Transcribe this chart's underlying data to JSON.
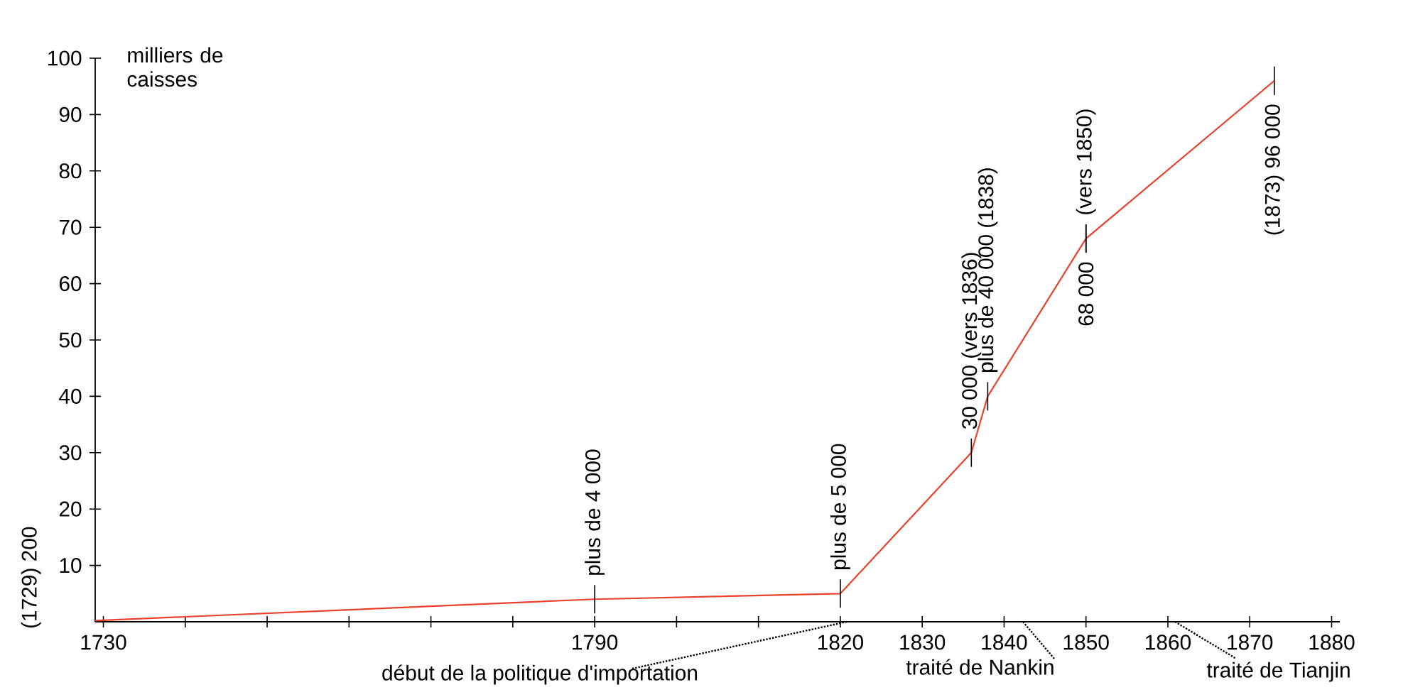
{
  "chart_data": {
    "type": "line",
    "ylabel": "milliers de caisses",
    "x": [
      1729,
      1790,
      1820,
      1836,
      1838,
      1850,
      1873
    ],
    "values": [
      0.2,
      4,
      5,
      30,
      40,
      68,
      96
    ],
    "color": "#e8412c",
    "xlim": [
      1729,
      1881
    ],
    "xticks": [
      1730,
      {
        "value": 1740,
        "label": null
      },
      {
        "value": 1750,
        "label": null
      },
      {
        "value": 1760,
        "label": null
      },
      {
        "value": 1770,
        "label": null
      },
      {
        "value": 1780,
        "label": null
      },
      1790,
      {
        "value": 1800,
        "label": null
      },
      {
        "value": 1810,
        "label": null
      },
      1820,
      1830,
      1840,
      1850,
      1860,
      1870,
      1880
    ],
    "ylim": [
      0,
      100
    ],
    "yticks": [
      10,
      20,
      30,
      40,
      50,
      60,
      70,
      80,
      90,
      100
    ],
    "line_style": "solid",
    "annotations": [
      {
        "text": "(1729) 200",
        "x": 1729,
        "y": 0.2
      },
      {
        "text": "plus de 4 000",
        "x": 1790,
        "y": 4
      },
      {
        "text": "plus de 5 000",
        "x": 1820,
        "y": 5
      },
      {
        "text": "30 000 (vers 1836)",
        "x": 1836,
        "y": 30
      },
      {
        "text": "plus de 40 000 (1838)",
        "x": 1838,
        "y": 40
      },
      {
        "text": "68 000",
        "x": 1850,
        "y": 68
      },
      {
        "text": "(vers 1850)",
        "x": 1850,
        "y": 68
      },
      {
        "text": "(1873) 96 000",
        "x": 1873,
        "y": 96
      },
      "début de la politique d'importation",
      "traité de Nankin",
      "traité de Tianjin"
    ]
  }
}
